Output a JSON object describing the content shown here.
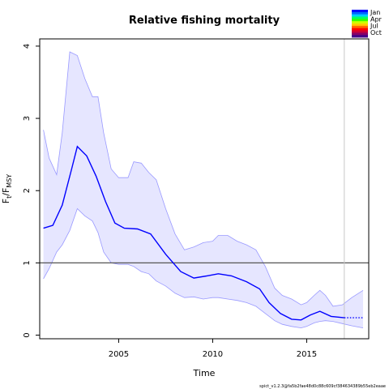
{
  "chart_data": {
    "type": "line",
    "title": "Relative fishing mortality",
    "xlabel": "Time",
    "ylabel": {
      "base": "F",
      "sub1": "t",
      "mid": "/F",
      "sub2": "MSY"
    },
    "xlim": [
      2000.8,
      2018.3
    ],
    "ylim": [
      -0.05,
      4.1
    ],
    "xticks": [
      2005,
      2010,
      2015
    ],
    "yticks": [
      0,
      1,
      2,
      3,
      4
    ],
    "reference_line_y": 1,
    "vertical_line_x": 2017,
    "grid": false,
    "series": [
      {
        "role": "estimate",
        "color": "#0000ff",
        "x": [
          2001.0,
          2001.5,
          2002.0,
          2002.5,
          2002.8,
          2003.3,
          2003.8,
          2004.3,
          2004.8,
          2005.3,
          2006.0,
          2006.7,
          2007.5,
          2008.3,
          2009.0,
          2009.7,
          2010.3,
          2011.0,
          2011.8,
          2012.5,
          2013.0,
          2013.6,
          2014.2,
          2014.7,
          2015.2,
          2015.7,
          2016.3,
          2017.0
        ],
        "y": [
          1.48,
          1.52,
          1.8,
          2.3,
          2.61,
          2.48,
          2.2,
          1.85,
          1.55,
          1.48,
          1.47,
          1.4,
          1.12,
          0.88,
          0.79,
          0.82,
          0.85,
          0.82,
          0.74,
          0.64,
          0.45,
          0.3,
          0.22,
          0.21,
          0.28,
          0.33,
          0.26,
          0.24
        ]
      },
      {
        "role": "forecast",
        "style": "dotted",
        "color": "#0000ff",
        "x": [
          2017.0,
          2018.0
        ],
        "y": [
          0.24,
          0.24
        ]
      }
    ],
    "confidence_band": {
      "color": "#e6e6ff",
      "edge_color": "#9999ff",
      "x": [
        2001.0,
        2001.3,
        2001.7,
        2002.0,
        2002.4,
        2002.8,
        2003.2,
        2003.6,
        2003.9,
        2004.2,
        2004.6,
        2005.0,
        2005.5,
        2005.8,
        2006.2,
        2006.6,
        2007.0,
        2007.5,
        2008.0,
        2008.5,
        2009.0,
        2009.5,
        2010.0,
        2010.3,
        2010.8,
        2011.3,
        2011.8,
        2012.3,
        2012.8,
        2013.3,
        2013.7,
        2014.2,
        2014.7,
        2015.0,
        2015.4,
        2015.7,
        2016.0,
        2016.4,
        2016.9,
        2017.4,
        2018.0
      ],
      "upper": [
        2.84,
        2.45,
        2.22,
        2.8,
        3.92,
        3.87,
        3.55,
        3.3,
        3.3,
        2.8,
        2.3,
        2.18,
        2.18,
        2.4,
        2.38,
        2.25,
        2.15,
        1.75,
        1.4,
        1.18,
        1.22,
        1.28,
        1.3,
        1.38,
        1.38,
        1.3,
        1.25,
        1.18,
        0.95,
        0.65,
        0.55,
        0.5,
        0.42,
        0.45,
        0.55,
        0.62,
        0.55,
        0.4,
        0.42,
        0.52,
        0.62
      ],
      "lower": [
        0.78,
        0.92,
        1.15,
        1.25,
        1.45,
        1.75,
        1.65,
        1.58,
        1.42,
        1.15,
        1.0,
        0.98,
        0.98,
        0.95,
        0.88,
        0.85,
        0.75,
        0.68,
        0.58,
        0.52,
        0.53,
        0.5,
        0.52,
        0.52,
        0.5,
        0.48,
        0.45,
        0.4,
        0.3,
        0.2,
        0.15,
        0.12,
        0.1,
        0.12,
        0.17,
        0.19,
        0.2,
        0.19,
        0.16,
        0.13,
        0.1
      ]
    }
  },
  "legend": {
    "entries": [
      "Jan",
      "Apr",
      "Jul",
      "Oct"
    ],
    "colors": [
      "#0000ff",
      "#0066ff",
      "#00ccff",
      "#00ff66",
      "#33ff00",
      "#ccff00",
      "#ffcc00",
      "#ff6600",
      "#ff0000",
      "#cc0033",
      "#880066",
      "#440088"
    ]
  },
  "footer": "spict_v1.2.3@fa5b2fae48d0c88c609cf384634389b55eb2eaae"
}
